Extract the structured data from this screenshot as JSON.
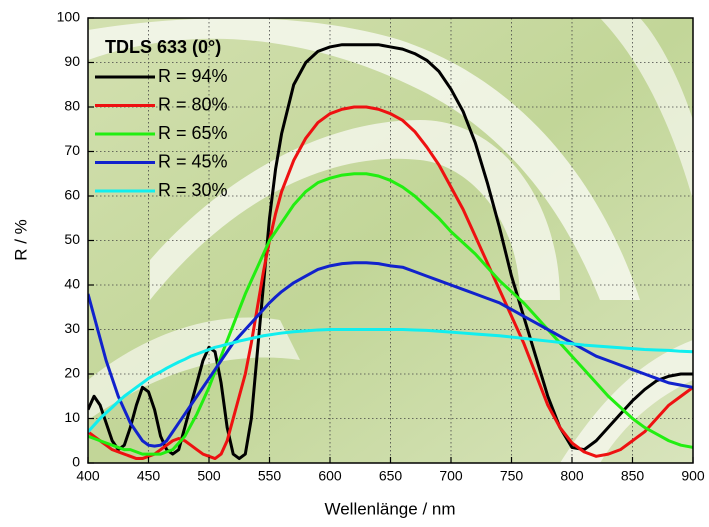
{
  "chart_data": {
    "type": "line",
    "legend_title": "TDLS 633 (0°)",
    "xlabel": "Wellenlänge / nm",
    "ylabel": "R / %",
    "xlim": [
      400,
      900
    ],
    "ylim": [
      0,
      100
    ],
    "xticks": [
      400,
      450,
      500,
      550,
      600,
      650,
      700,
      750,
      800,
      850,
      900
    ],
    "yticks": [
      0,
      10,
      20,
      30,
      40,
      50,
      60,
      70,
      80,
      90,
      100
    ],
    "grid": true,
    "legend": "upper left",
    "x": [
      400,
      405,
      410,
      415,
      420,
      425,
      430,
      435,
      440,
      445,
      450,
      455,
      460,
      465,
      470,
      475,
      480,
      485,
      490,
      495,
      500,
      505,
      510,
      515,
      520,
      525,
      530,
      535,
      540,
      545,
      550,
      555,
      560,
      570,
      580,
      590,
      600,
      610,
      620,
      630,
      640,
      650,
      660,
      670,
      680,
      690,
      700,
      710,
      720,
      730,
      740,
      750,
      760,
      770,
      780,
      790,
      800,
      810,
      820,
      830,
      840,
      850,
      860,
      870,
      880,
      890,
      900
    ],
    "series": [
      {
        "name": "R = 94%",
        "color": "#000000",
        "values": [
          12,
          15,
          13,
          9,
          5,
          3,
          4,
          8,
          13,
          17,
          16,
          12,
          6,
          3,
          2,
          3,
          8,
          13,
          18,
          23,
          26,
          25,
          18,
          8,
          2,
          1,
          2,
          10,
          25,
          40,
          55,
          66,
          74,
          85,
          90,
          92.5,
          93.5,
          94,
          94,
          94,
          94,
          93.5,
          93,
          92,
          90.5,
          88,
          84,
          79,
          72,
          63,
          53,
          42,
          33,
          24,
          15,
          8,
          3.5,
          3,
          5,
          8,
          11,
          14,
          16.5,
          18.5,
          19.5,
          20,
          20
        ]
      },
      {
        "name": "R = 80%",
        "color": "#ee1111",
        "values": [
          7,
          6,
          5,
          4,
          3,
          2.5,
          2,
          1.5,
          1,
          1,
          1.5,
          2,
          3,
          4,
          5,
          5.5,
          5,
          4,
          3,
          2,
          1.5,
          1,
          2,
          5,
          10,
          15,
          20,
          27,
          35,
          43,
          50,
          56,
          61,
          68,
          73,
          76.5,
          78.5,
          79.5,
          80,
          80,
          79.5,
          78.5,
          77,
          74.5,
          71,
          67,
          62,
          57,
          51,
          45,
          39,
          33,
          27,
          20,
          13,
          8,
          4.5,
          2.5,
          1.5,
          2,
          3,
          5,
          7,
          10,
          13,
          15,
          17
        ]
      },
      {
        "name": "R = 65%",
        "color": "#22ee11",
        "values": [
          6,
          5.5,
          5,
          4.5,
          4,
          3.5,
          3,
          3,
          2.5,
          2,
          2,
          2,
          2,
          2.5,
          3,
          4.5,
          6,
          8.5,
          11,
          14,
          17,
          20.5,
          24,
          27.5,
          31,
          34.5,
          38,
          41,
          44,
          47,
          50,
          52,
          54,
          58,
          61,
          63,
          64,
          64.7,
          65,
          65,
          64.5,
          63.5,
          62,
          60,
          57.5,
          55,
          52,
          49.5,
          47,
          44,
          41,
          38.5,
          36,
          33,
          30,
          27,
          24,
          21,
          18,
          15,
          12.5,
          10,
          8,
          6.5,
          5,
          4,
          3.5
        ]
      },
      {
        "name": "R = 45%",
        "color": "#1122cc",
        "values": [
          38,
          33,
          28,
          23,
          19,
          15,
          12,
          9,
          7,
          5,
          4,
          3.8,
          4,
          5,
          7,
          9,
          11,
          13,
          15,
          17,
          19,
          21,
          23,
          25,
          27,
          28.5,
          30,
          31.5,
          33,
          34.5,
          36,
          37.3,
          38.5,
          40.5,
          42,
          43.5,
          44.3,
          44.8,
          45,
          45,
          44.8,
          44.3,
          44,
          43,
          42,
          41,
          40,
          39,
          38,
          37,
          36,
          34.5,
          33,
          31.5,
          30,
          28.5,
          27,
          25.5,
          24,
          23,
          22,
          21,
          20,
          19,
          18,
          17.5,
          17
        ]
      },
      {
        "name": "R = 30%",
        "color": "#11eeee",
        "values": [
          7,
          8.5,
          10,
          11.3,
          12.5,
          13.8,
          15,
          16,
          17,
          18,
          19,
          19.8,
          20.5,
          21.3,
          22,
          22.7,
          23.3,
          24,
          24.5,
          25,
          25.5,
          26,
          26.3,
          26.7,
          27,
          27.4,
          27.7,
          28,
          28.3,
          28.6,
          28.8,
          29,
          29.2,
          29.5,
          29.7,
          29.9,
          30,
          30,
          30,
          30,
          30,
          30,
          30,
          29.9,
          29.8,
          29.6,
          29.4,
          29.2,
          29,
          28.8,
          28.6,
          28.3,
          28,
          27.7,
          27.4,
          27.1,
          26.8,
          26.5,
          26.3,
          26.1,
          25.9,
          25.7,
          25.5,
          25.4,
          25.3,
          25.1,
          25
        ]
      }
    ]
  }
}
